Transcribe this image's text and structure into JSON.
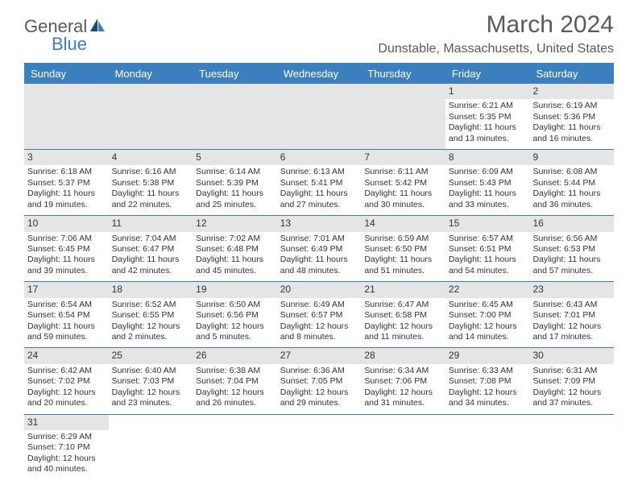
{
  "logo": {
    "part1": "General",
    "part2": "Blue"
  },
  "title": "March 2024",
  "location": "Dunstable, Massachusetts, United States",
  "weekdays": [
    "Sunday",
    "Monday",
    "Tuesday",
    "Wednesday",
    "Thursday",
    "Friday",
    "Saturday"
  ],
  "colors": {
    "header_bg": "#3b7fbf",
    "header_text": "#ffffff",
    "rule": "#3b7fbf",
    "empty_bg": "#e5e5e5",
    "text": "#333333",
    "title_text": "#5a5a5a"
  },
  "rows": [
    [
      {
        "blank": true
      },
      {
        "blank": true
      },
      {
        "blank": true
      },
      {
        "blank": true
      },
      {
        "blank": true
      },
      {
        "day": "1",
        "sunrise": "Sunrise: 6:21 AM",
        "sunset": "Sunset: 5:35 PM",
        "daylight": "Daylight: 11 hours and 13 minutes."
      },
      {
        "day": "2",
        "sunrise": "Sunrise: 6:19 AM",
        "sunset": "Sunset: 5:36 PM",
        "daylight": "Daylight: 11 hours and 16 minutes."
      }
    ],
    [
      {
        "day": "3",
        "sunrise": "Sunrise: 6:18 AM",
        "sunset": "Sunset: 5:37 PM",
        "daylight": "Daylight: 11 hours and 19 minutes."
      },
      {
        "day": "4",
        "sunrise": "Sunrise: 6:16 AM",
        "sunset": "Sunset: 5:38 PM",
        "daylight": "Daylight: 11 hours and 22 minutes."
      },
      {
        "day": "5",
        "sunrise": "Sunrise: 6:14 AM",
        "sunset": "Sunset: 5:39 PM",
        "daylight": "Daylight: 11 hours and 25 minutes."
      },
      {
        "day": "6",
        "sunrise": "Sunrise: 6:13 AM",
        "sunset": "Sunset: 5:41 PM",
        "daylight": "Daylight: 11 hours and 27 minutes."
      },
      {
        "day": "7",
        "sunrise": "Sunrise: 6:11 AM",
        "sunset": "Sunset: 5:42 PM",
        "daylight": "Daylight: 11 hours and 30 minutes."
      },
      {
        "day": "8",
        "sunrise": "Sunrise: 6:09 AM",
        "sunset": "Sunset: 5:43 PM",
        "daylight": "Daylight: 11 hours and 33 minutes."
      },
      {
        "day": "9",
        "sunrise": "Sunrise: 6:08 AM",
        "sunset": "Sunset: 5:44 PM",
        "daylight": "Daylight: 11 hours and 36 minutes."
      }
    ],
    [
      {
        "day": "10",
        "sunrise": "Sunrise: 7:06 AM",
        "sunset": "Sunset: 6:45 PM",
        "daylight": "Daylight: 11 hours and 39 minutes."
      },
      {
        "day": "11",
        "sunrise": "Sunrise: 7:04 AM",
        "sunset": "Sunset: 6:47 PM",
        "daylight": "Daylight: 11 hours and 42 minutes."
      },
      {
        "day": "12",
        "sunrise": "Sunrise: 7:02 AM",
        "sunset": "Sunset: 6:48 PM",
        "daylight": "Daylight: 11 hours and 45 minutes."
      },
      {
        "day": "13",
        "sunrise": "Sunrise: 7:01 AM",
        "sunset": "Sunset: 6:49 PM",
        "daylight": "Daylight: 11 hours and 48 minutes."
      },
      {
        "day": "14",
        "sunrise": "Sunrise: 6:59 AM",
        "sunset": "Sunset: 6:50 PM",
        "daylight": "Daylight: 11 hours and 51 minutes."
      },
      {
        "day": "15",
        "sunrise": "Sunrise: 6:57 AM",
        "sunset": "Sunset: 6:51 PM",
        "daylight": "Daylight: 11 hours and 54 minutes."
      },
      {
        "day": "16",
        "sunrise": "Sunrise: 6:56 AM",
        "sunset": "Sunset: 6:53 PM",
        "daylight": "Daylight: 11 hours and 57 minutes."
      }
    ],
    [
      {
        "day": "17",
        "sunrise": "Sunrise: 6:54 AM",
        "sunset": "Sunset: 6:54 PM",
        "daylight": "Daylight: 11 hours and 59 minutes."
      },
      {
        "day": "18",
        "sunrise": "Sunrise: 6:52 AM",
        "sunset": "Sunset: 6:55 PM",
        "daylight": "Daylight: 12 hours and 2 minutes."
      },
      {
        "day": "19",
        "sunrise": "Sunrise: 6:50 AM",
        "sunset": "Sunset: 6:56 PM",
        "daylight": "Daylight: 12 hours and 5 minutes."
      },
      {
        "day": "20",
        "sunrise": "Sunrise: 6:49 AM",
        "sunset": "Sunset: 6:57 PM",
        "daylight": "Daylight: 12 hours and 8 minutes."
      },
      {
        "day": "21",
        "sunrise": "Sunrise: 6:47 AM",
        "sunset": "Sunset: 6:58 PM",
        "daylight": "Daylight: 12 hours and 11 minutes."
      },
      {
        "day": "22",
        "sunrise": "Sunrise: 6:45 AM",
        "sunset": "Sunset: 7:00 PM",
        "daylight": "Daylight: 12 hours and 14 minutes."
      },
      {
        "day": "23",
        "sunrise": "Sunrise: 6:43 AM",
        "sunset": "Sunset: 7:01 PM",
        "daylight": "Daylight: 12 hours and 17 minutes."
      }
    ],
    [
      {
        "day": "24",
        "sunrise": "Sunrise: 6:42 AM",
        "sunset": "Sunset: 7:02 PM",
        "daylight": "Daylight: 12 hours and 20 minutes."
      },
      {
        "day": "25",
        "sunrise": "Sunrise: 6:40 AM",
        "sunset": "Sunset: 7:03 PM",
        "daylight": "Daylight: 12 hours and 23 minutes."
      },
      {
        "day": "26",
        "sunrise": "Sunrise: 6:38 AM",
        "sunset": "Sunset: 7:04 PM",
        "daylight": "Daylight: 12 hours and 26 minutes."
      },
      {
        "day": "27",
        "sunrise": "Sunrise: 6:36 AM",
        "sunset": "Sunset: 7:05 PM",
        "daylight": "Daylight: 12 hours and 29 minutes."
      },
      {
        "day": "28",
        "sunrise": "Sunrise: 6:34 AM",
        "sunset": "Sunset: 7:06 PM",
        "daylight": "Daylight: 12 hours and 31 minutes."
      },
      {
        "day": "29",
        "sunrise": "Sunrise: 6:33 AM",
        "sunset": "Sunset: 7:08 PM",
        "daylight": "Daylight: 12 hours and 34 minutes."
      },
      {
        "day": "30",
        "sunrise": "Sunrise: 6:31 AM",
        "sunset": "Sunset: 7:09 PM",
        "daylight": "Daylight: 12 hours and 37 minutes."
      }
    ],
    [
      {
        "day": "31",
        "sunrise": "Sunrise: 6:29 AM",
        "sunset": "Sunset: 7:10 PM",
        "daylight": "Daylight: 12 hours and 40 minutes."
      },
      {
        "blank": true,
        "noBg": true
      },
      {
        "blank": true,
        "noBg": true
      },
      {
        "blank": true,
        "noBg": true
      },
      {
        "blank": true,
        "noBg": true
      },
      {
        "blank": true,
        "noBg": true
      },
      {
        "blank": true,
        "noBg": true
      }
    ]
  ]
}
